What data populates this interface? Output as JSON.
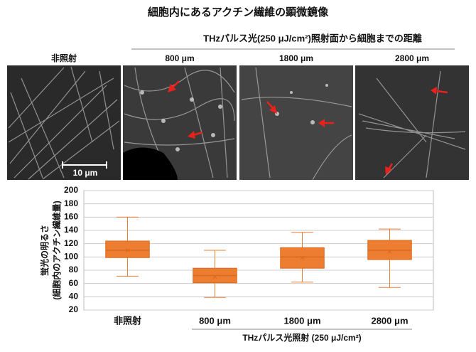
{
  "figure": {
    "title": "細胞内にあるアクチン繊維の顕微鏡像",
    "subtitle": "THzパルス光(250 μJ/cm²)照射面から細胞までの距離",
    "image_labels": [
      "非照射",
      "800 μm",
      "1800 μm",
      "2800 μm"
    ],
    "scale_bar": "10 μm"
  },
  "chart_data": {
    "type": "box",
    "categories": [
      "非照射",
      "800 μm",
      "1800 μm",
      "2800 μm"
    ],
    "boxes": [
      {
        "min": 71,
        "q1": 99,
        "median": 110,
        "q3": 124,
        "max": 160,
        "mean": 110
      },
      {
        "min": 39,
        "q1": 61,
        "median": 72,
        "q3": 83,
        "max": 110,
        "mean": 70
      },
      {
        "min": 62,
        "q1": 83,
        "median": 100,
        "q3": 114,
        "max": 137,
        "mean": 99
      },
      {
        "min": 54,
        "q1": 96,
        "median": 110,
        "q3": 125,
        "max": 142,
        "mean": 108
      }
    ],
    "color": "#ed7d31",
    "ylim": [
      20,
      200
    ],
    "yticks": [
      20,
      40,
      60,
      80,
      100,
      120,
      140,
      160,
      180,
      200
    ],
    "grid": true,
    "y_label": [
      "蛍光の明るさ",
      "(細胞内のアクチン繊維量)"
    ],
    "x_group_label": "THzパルス光照射 (250 μJ/cm²)"
  }
}
